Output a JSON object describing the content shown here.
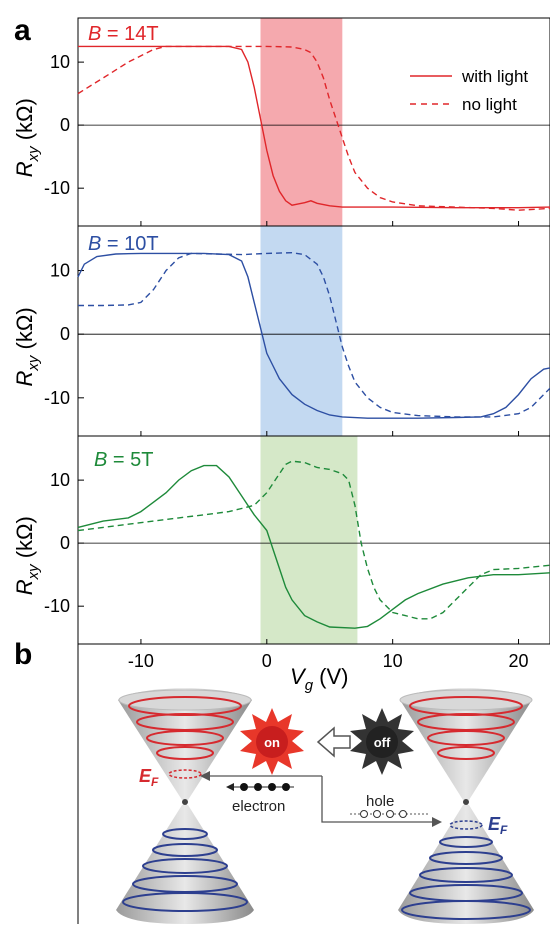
{
  "panel_a_label": "a",
  "panel_b_label": "b",
  "legend": {
    "with_light": "with light",
    "no_light": "no light"
  },
  "ylabel": {
    "main": "R",
    "sub": "xy",
    "unit": " (kΩ)"
  },
  "xlabel": {
    "main": "V",
    "sub": "g",
    "unit": " (V)"
  },
  "diagram": {
    "on_label": "on",
    "off_label": "off",
    "electron_label": "electron",
    "hole_label": "hole",
    "ef_main": "E",
    "ef_sub": "F"
  },
  "colors": {
    "red": "#e0262a",
    "blue": "#2d4fa3",
    "green": "#1e8a3a"
  },
  "chart_data": [
    {
      "type": "line",
      "title": "B = 14T",
      "title_parts": {
        "var": "B",
        "rest": " = 14T"
      },
      "color": "#e0262a",
      "shade": {
        "x": [
          -0.5,
          6
        ],
        "color": "#f5a9ae"
      },
      "xlim": [
        -15,
        22.5
      ],
      "ylim": [
        -16,
        17
      ],
      "yticks": [
        -10,
        0,
        10
      ],
      "ytick_labels": [
        "-10",
        "0",
        "10"
      ],
      "series": [
        {
          "name": "with light",
          "dash": false,
          "points": [
            [
              -15,
              12.5
            ],
            [
              -10,
              12.5
            ],
            [
              -5,
              12.5
            ],
            [
              -3,
              12.5
            ],
            [
              -2,
              12
            ],
            [
              -1.5,
              10
            ],
            [
              -1,
              6
            ],
            [
              -0.5,
              1
            ],
            [
              0,
              -4
            ],
            [
              0.5,
              -8
            ],
            [
              1,
              -10.5
            ],
            [
              1.5,
              -12
            ],
            [
              2,
              -12.7
            ],
            [
              2.5,
              -12.5
            ],
            [
              3,
              -12.3
            ],
            [
              3.5,
              -12
            ],
            [
              4,
              -12.4
            ],
            [
              5,
              -12.8
            ],
            [
              6,
              -13
            ],
            [
              8,
              -13
            ],
            [
              10,
              -13
            ],
            [
              15,
              -13.1
            ],
            [
              20,
              -13.1
            ],
            [
              22.5,
              -13
            ]
          ]
        },
        {
          "name": "no light",
          "dash": true,
          "points": [
            [
              -15,
              5
            ],
            [
              -13,
              7.5
            ],
            [
              -11,
              10
            ],
            [
              -9,
              12
            ],
            [
              -8,
              12.5
            ],
            [
              -5,
              12.5
            ],
            [
              -2,
              12.5
            ],
            [
              0,
              12.5
            ],
            [
              2,
              12.4
            ],
            [
              3,
              12
            ],
            [
              3.5,
              11.5
            ],
            [
              4,
              10
            ],
            [
              4.5,
              7.5
            ],
            [
              5,
              4
            ],
            [
              5.5,
              1
            ],
            [
              6,
              -2
            ],
            [
              6.5,
              -5
            ],
            [
              7,
              -7.5
            ],
            [
              8,
              -10
            ],
            [
              9,
              -11.5
            ],
            [
              10,
              -12.2
            ],
            [
              12,
              -12.8
            ],
            [
              15,
              -13
            ],
            [
              18,
              -13.2
            ],
            [
              20,
              -13.5
            ],
            [
              22.5,
              -13.2
            ]
          ]
        }
      ]
    },
    {
      "type": "line",
      "title": "B = 10T",
      "title_parts": {
        "var": "B",
        "rest": " = 10T"
      },
      "color": "#2d4fa3",
      "shade": {
        "x": [
          -0.5,
          6
        ],
        "color": "#c3d9f1"
      },
      "xlim": [
        -15,
        22.5
      ],
      "ylim": [
        -16,
        17
      ],
      "yticks": [
        -10,
        0,
        10
      ],
      "ytick_labels": [
        "-10",
        "0",
        "10"
      ],
      "series": [
        {
          "name": "with light",
          "dash": false,
          "points": [
            [
              -15,
              9
            ],
            [
              -14.5,
              11
            ],
            [
              -13.5,
              12.2
            ],
            [
              -12,
              12.6
            ],
            [
              -10,
              12.7
            ],
            [
              -5,
              12.7
            ],
            [
              -3,
              12.5
            ],
            [
              -2,
              11.5
            ],
            [
              -1.5,
              9
            ],
            [
              -1,
              5
            ],
            [
              -0.5,
              1
            ],
            [
              0,
              -3
            ],
            [
              0.5,
              -5
            ],
            [
              1,
              -7
            ],
            [
              2,
              -9.5
            ],
            [
              3,
              -11
            ],
            [
              4,
              -12
            ],
            [
              5,
              -12.7
            ],
            [
              6,
              -13
            ],
            [
              8,
              -13.2
            ],
            [
              10,
              -13.2
            ],
            [
              12,
              -13.2
            ],
            [
              15,
              -13.1
            ],
            [
              17,
              -13
            ],
            [
              18,
              -12.5
            ],
            [
              19,
              -11.5
            ],
            [
              20,
              -9.5
            ],
            [
              21,
              -7
            ],
            [
              22,
              -5.5
            ],
            [
              22.5,
              -5.3
            ]
          ]
        },
        {
          "name": "no light",
          "dash": true,
          "points": [
            [
              -15,
              4.5
            ],
            [
              -13,
              4.5
            ],
            [
              -11,
              4.6
            ],
            [
              -10,
              5
            ],
            [
              -9,
              7
            ],
            [
              -8,
              10
            ],
            [
              -7,
              12
            ],
            [
              -6,
              12.7
            ],
            [
              -4,
              12.6
            ],
            [
              -2,
              12.5
            ],
            [
              0,
              12.7
            ],
            [
              2,
              12.8
            ],
            [
              3,
              12.5
            ],
            [
              4,
              11
            ],
            [
              4.5,
              9
            ],
            [
              5,
              6
            ],
            [
              5.5,
              2
            ],
            [
              6,
              -2
            ],
            [
              6.5,
              -5
            ],
            [
              7,
              -7.5
            ],
            [
              8,
              -10
            ],
            [
              9,
              -11.5
            ],
            [
              10,
              -12.3
            ],
            [
              12,
              -12.8
            ],
            [
              15,
              -13
            ],
            [
              18,
              -13
            ],
            [
              20,
              -12.5
            ],
            [
              21,
              -11.5
            ],
            [
              22,
              -9.5
            ],
            [
              22.5,
              -8.5
            ]
          ]
        }
      ]
    },
    {
      "type": "line",
      "title": "B = 5T",
      "title_parts": {
        "var": "B",
        "rest": " = 5T"
      },
      "color": "#1e8a3a",
      "shade": {
        "x": [
          -0.5,
          7.2
        ],
        "color": "#d5e8c8"
      },
      "xlim": [
        -15,
        22.5
      ],
      "ylim": [
        -16,
        17
      ],
      "yticks": [
        -10,
        0,
        10
      ],
      "ytick_labels": [
        "-10",
        "0",
        "10"
      ],
      "series": [
        {
          "name": "with light",
          "dash": false,
          "points": [
            [
              -15,
              2.5
            ],
            [
              -13,
              3.5
            ],
            [
              -11,
              4
            ],
            [
              -10,
              5
            ],
            [
              -9,
              6.5
            ],
            [
              -8,
              8
            ],
            [
              -7,
              10
            ],
            [
              -6,
              11.5
            ],
            [
              -5,
              12.3
            ],
            [
              -4,
              12.3
            ],
            [
              -3,
              10.5
            ],
            [
              -2,
              7.5
            ],
            [
              -1,
              4.5
            ],
            [
              0,
              2
            ],
            [
              0.5,
              -1
            ],
            [
              1,
              -4
            ],
            [
              1.5,
              -7
            ],
            [
              2,
              -9
            ],
            [
              3,
              -11.5
            ],
            [
              4,
              -12.5
            ],
            [
              5,
              -13.3
            ],
            [
              7,
              -13.5
            ],
            [
              8,
              -13.2
            ],
            [
              9,
              -12
            ],
            [
              10,
              -10.5
            ],
            [
              11,
              -9
            ],
            [
              12,
              -8
            ],
            [
              14,
              -6.5
            ],
            [
              16,
              -5.5
            ],
            [
              18,
              -5
            ],
            [
              20,
              -5
            ],
            [
              22.5,
              -4.7
            ]
          ]
        },
        {
          "name": "no light",
          "dash": true,
          "points": [
            [
              -15,
              2
            ],
            [
              -13,
              2.5
            ],
            [
              -11,
              3
            ],
            [
              -9,
              3.5
            ],
            [
              -7,
              4
            ],
            [
              -5,
              4.5
            ],
            [
              -3,
              5
            ],
            [
              -2,
              5.5
            ],
            [
              -1,
              6
            ],
            [
              0,
              8
            ],
            [
              1,
              11
            ],
            [
              1.5,
              12.5
            ],
            [
              2,
              13
            ],
            [
              3,
              12.8
            ],
            [
              4,
              12
            ],
            [
              5,
              11.7
            ],
            [
              6,
              11
            ],
            [
              6.5,
              10
            ],
            [
              7,
              6
            ],
            [
              7.5,
              0
            ],
            [
              8,
              -4
            ],
            [
              8.5,
              -7
            ],
            [
              9,
              -9
            ],
            [
              10,
              -11
            ],
            [
              11,
              -11.5
            ],
            [
              12,
              -12
            ],
            [
              13,
              -12
            ],
            [
              14,
              -11
            ],
            [
              15,
              -9
            ],
            [
              16,
              -7
            ],
            [
              17,
              -5
            ],
            [
              18,
              -4.2
            ],
            [
              20,
              -4
            ],
            [
              22.5,
              -3.5
            ]
          ]
        }
      ]
    }
  ]
}
